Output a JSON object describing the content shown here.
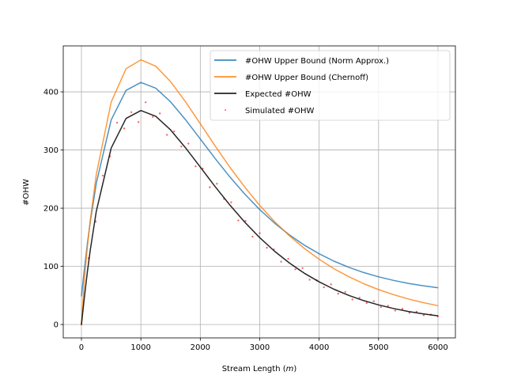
{
  "chart_data": {
    "type": "line",
    "title": "",
    "xlabel": "Stream Length",
    "xlabel_unit": "m",
    "ylabel": "#OHW",
    "xlim": [
      -306,
      6293
    ],
    "ylim": [
      -23,
      479
    ],
    "xticks": [
      "0",
      "1000",
      "2000",
      "3000",
      "4000",
      "5000",
      "6000"
    ],
    "yticks": [
      "0",
      "100",
      "200",
      "300",
      "400"
    ],
    "grid": true,
    "legend_position": "top-right",
    "x": [
      0,
      50,
      100,
      150,
      250,
      500,
      750,
      1000,
      1250,
      1500,
      1750,
      2000,
      2250,
      2500,
      2750,
      3000,
      3250,
      3500,
      3750,
      4000,
      4250,
      4500,
      4750,
      5000,
      5250,
      5500,
      5750,
      6000
    ],
    "series": [
      {
        "name": "#OHW Upper Bound (Norm Approx.)",
        "kind": "line",
        "color": "#1f77b4",
        "values": [
          48.3,
          95.9,
          138.8,
          177.4,
          243.0,
          351.6,
          402.6,
          416.2,
          406.4,
          383.0,
          352.4,
          319.0,
          285.4,
          253.5,
          224.1,
          197.7,
          174.3,
          154.0,
          136.5,
          121.6,
          108.9,
          98.3,
          89.4,
          82.0,
          75.9,
          70.8,
          66.6,
          63.2
        ]
      },
      {
        "name": "#OHW Upper Bound (Chernoff)",
        "kind": "line",
        "color": "#ff7f0e",
        "values": [
          0,
          78.9,
          133.7,
          180.7,
          258.0,
          382.3,
          439.7,
          455.0,
          444.0,
          417.7,
          383.2,
          345.4,
          307.0,
          270.2,
          236.0,
          204.9,
          177.0,
          152.4,
          130.8,
          112.2,
          95.9,
          82.1,
          70.2,
          60.0,
          51.4,
          44.0,
          37.7,
          32.4
        ]
      },
      {
        "name": "Expected #OHW",
        "kind": "line",
        "color": "#000000",
        "values": [
          0,
          47.6,
          90.5,
          129.1,
          194.7,
          303.3,
          354.3,
          367.9,
          358.1,
          334.7,
          304.1,
          270.7,
          237.1,
          205.2,
          175.8,
          149.4,
          126.0,
          105.7,
          88.2,
          73.3,
          60.6,
          50.0,
          41.1,
          33.7,
          27.6,
          22.5,
          18.3,
          14.9
        ]
      }
    ],
    "scatter": {
      "name": "Simulated #OHW",
      "color": "#ff0000",
      "x": [
        0,
        120,
        240,
        360,
        480,
        600,
        720,
        840,
        960,
        1080,
        1200,
        1320,
        1440,
        1560,
        1680,
        1800,
        1920,
        2040,
        2160,
        2280,
        2400,
        2520,
        2640,
        2760,
        2880,
        3000,
        3120,
        3240,
        3360,
        3480,
        3600,
        3720,
        3840,
        3960,
        4080,
        4200,
        4320,
        4440,
        4560,
        4680,
        4800,
        4920,
        5040,
        5160,
        5280,
        5400,
        5520,
        5640,
        5760,
        5880,
        6000
      ],
      "y": [
        0,
        114,
        177,
        256,
        289,
        347,
        337,
        365,
        348,
        382,
        357,
        363,
        326,
        332,
        306,
        311,
        272,
        268,
        236,
        242,
        216,
        210,
        179,
        178,
        151,
        157,
        132,
        129,
        108,
        113,
        95,
        97,
        77,
        76,
        64,
        69,
        53,
        56,
        43,
        46,
        37,
        40,
        30,
        32,
        24,
        27,
        20,
        22,
        16,
        17,
        14
      ]
    }
  }
}
